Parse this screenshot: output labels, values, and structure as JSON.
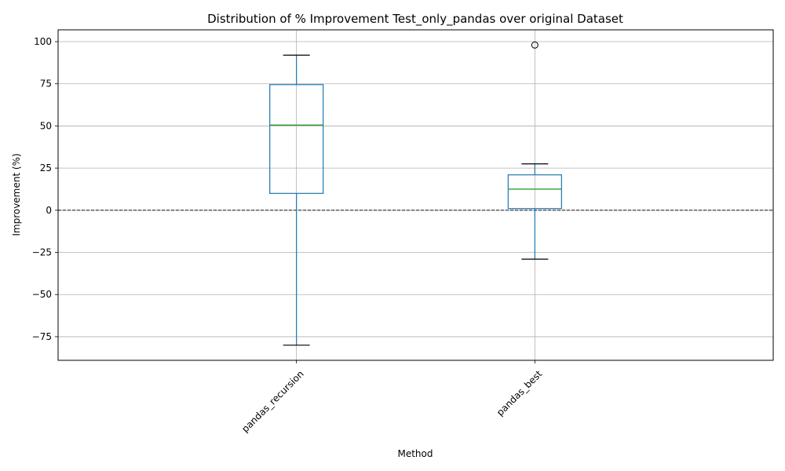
{
  "chart_data": {
    "type": "box",
    "title": "Distribution of % Improvement Test_only_pandas over original Dataset",
    "xlabel": "Method",
    "ylabel": "Improvement (%)",
    "ylim": [
      -89,
      107
    ],
    "yticks": [
      -75,
      -50,
      -25,
      0,
      25,
      50,
      75,
      100
    ],
    "ytick_labels": [
      "−75",
      "−50",
      "−25",
      "0",
      "25",
      "50",
      "75",
      "100"
    ],
    "grid": true,
    "reference_line": 0,
    "categories": [
      "pandas_recursion",
      "pandas_best"
    ],
    "boxes": [
      {
        "name": "pandas_recursion",
        "whisker_low": -80,
        "q1": 10,
        "median": 50.5,
        "q3": 74.5,
        "whisker_high": 92,
        "outliers": []
      },
      {
        "name": "pandas_best",
        "whisker_low": -29,
        "q1": 1,
        "median": 12.5,
        "q3": 21,
        "whisker_high": 27.5,
        "outliers": [
          98
        ]
      }
    ],
    "colors": {
      "box": "#1f77b4",
      "median": "#2ca02c",
      "whisker_cap": "#000000",
      "grid": "#b0b0b0",
      "reference_line": "#000000"
    }
  }
}
